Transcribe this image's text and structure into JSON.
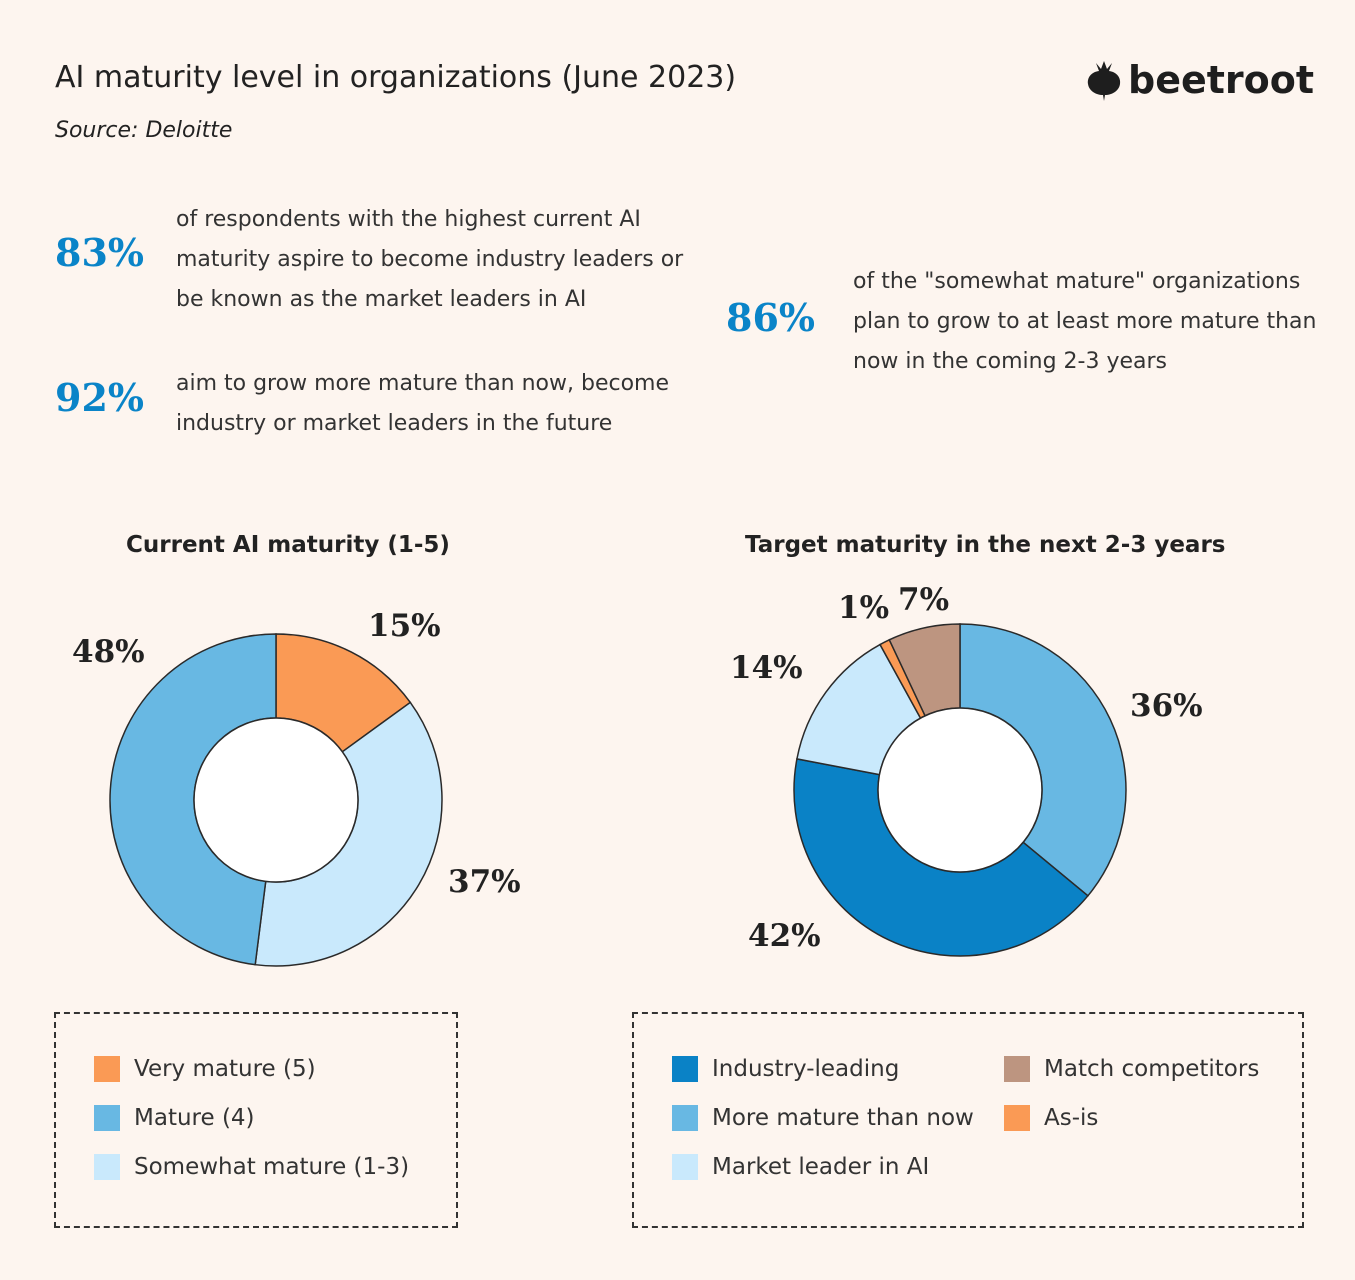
{
  "title": "AI maturity level in organizations (June 2023)",
  "source": "Source: Deloitte",
  "logo": "beetroot",
  "stats": [
    {
      "value": "83%",
      "text": "of respondents with the highest current AI maturity aspire to become industry leaders or be known as the market leaders in AI"
    },
    {
      "value": "92%",
      "text": "aim to grow more mature than now, become industry or market leaders in the future"
    },
    {
      "value": "86%",
      "text": "of the \"somewhat mature\" organizations plan to grow to at least more mature than now in the coming 2-3 years"
    }
  ],
  "chart_data": [
    {
      "type": "pie",
      "donut": true,
      "title": "Current AI maturity (1-5)",
      "categories": [
        "Very mature (5)",
        "Somewhat mature (1-3)",
        "Mature (4)"
      ],
      "values": [
        15,
        37,
        48
      ],
      "labels": [
        "15%",
        "37%",
        "48%"
      ],
      "colors": [
        "#fa9a55",
        "#c9e9fc",
        "#68b8e3"
      ],
      "legend": [
        "Very mature (5)",
        "Mature (4)",
        "Somewhat mature (1-3)"
      ],
      "legend_colors": [
        "#fa9a55",
        "#68b8e3",
        "#c9e9fc"
      ]
    },
    {
      "type": "pie",
      "donut": true,
      "title": "Target maturity in the next 2-3 years",
      "categories": [
        "More mature than now",
        "Industry-leading",
        "Market leader in AI",
        "As-is",
        "Match competitors"
      ],
      "values": [
        36,
        42,
        14,
        1,
        7
      ],
      "labels": [
        "36%",
        "42%",
        "14%",
        "1%",
        "7%"
      ],
      "colors": [
        "#68b8e3",
        "#0a82c6",
        "#c9e9fc",
        "#fa9a55",
        "#bd9580"
      ],
      "legend": [
        "Industry-leading",
        "More mature than now",
        "Market leader in AI",
        "Match competitors",
        "As-is"
      ],
      "legend_colors": [
        "#0a82c6",
        "#68b8e3",
        "#c9e9fc",
        "#bd9580",
        "#fa9a55"
      ]
    }
  ]
}
